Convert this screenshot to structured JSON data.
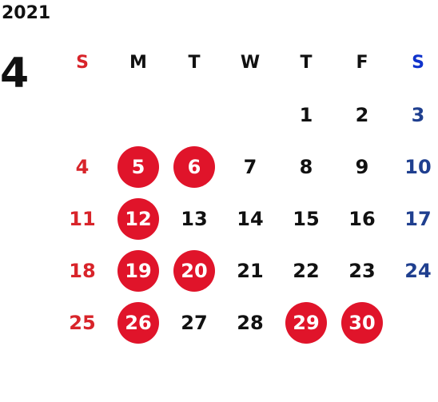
{
  "calendar": {
    "year": "2021",
    "month": "4",
    "weekdays": [
      "S",
      "M",
      "T",
      "W",
      "T",
      "F",
      "S"
    ],
    "weeks": [
      [
        "",
        "",
        "",
        "",
        "1",
        "2",
        "3"
      ],
      [
        "4",
        "5",
        "6",
        "7",
        "8",
        "9",
        "10"
      ],
      [
        "11",
        "12",
        "13",
        "14",
        "15",
        "16",
        "17"
      ],
      [
        "18",
        "19",
        "20",
        "21",
        "22",
        "23",
        "24"
      ],
      [
        "25",
        "26",
        "27",
        "28",
        "29",
        "30",
        ""
      ]
    ],
    "highlighted_days": [
      "5",
      "6",
      "12",
      "19",
      "20",
      "26",
      "29",
      "30"
    ],
    "colors": {
      "sunday": "#d8242a",
      "saturday": "#1f3f8f",
      "highlight": "#e0142a"
    }
  }
}
